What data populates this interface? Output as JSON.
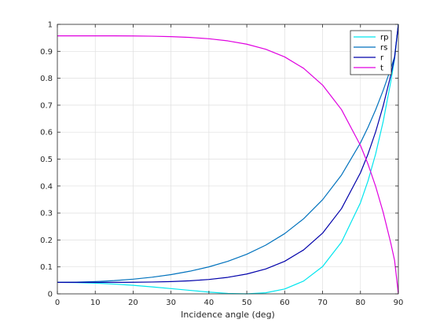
{
  "chart_data": {
    "type": "line",
    "title": "",
    "xlabel": "Incidence angle (deg)",
    "ylabel": "",
    "xlim": [
      0,
      90
    ],
    "ylim": [
      0,
      1
    ],
    "xticks": [
      0,
      10,
      20,
      30,
      40,
      50,
      60,
      70,
      80,
      90
    ],
    "yticks": [
      0,
      0.1,
      0.2,
      0.3,
      0.4,
      0.5,
      0.6,
      0.7,
      0.8,
      0.9,
      1
    ],
    "grid": true,
    "legend_position": "top-right",
    "x": [
      0,
      5,
      10,
      15,
      20,
      25,
      30,
      35,
      40,
      45,
      50,
      55,
      60,
      65,
      70,
      75,
      80,
      82,
      84,
      86,
      88,
      89,
      90
    ],
    "series": [
      {
        "name": "rp",
        "color": "#00e5ee",
        "values": [
          0.0426,
          0.0419,
          0.0398,
          0.0363,
          0.0316,
          0.0259,
          0.0195,
          0.0129,
          0.0066,
          0.0017,
          1e-05,
          0.004,
          0.018,
          0.0475,
          0.1013,
          0.192,
          0.3383,
          0.4196,
          0.519,
          0.6401,
          0.7873,
          0.8715,
          1.0
        ]
      },
      {
        "name": "rs",
        "color": "#0072bd",
        "values": [
          0.0426,
          0.0433,
          0.0455,
          0.0491,
          0.0545,
          0.0618,
          0.0715,
          0.0841,
          0.1002,
          0.1208,
          0.1471,
          0.1807,
          0.2236,
          0.2786,
          0.3493,
          0.441,
          0.5603,
          0.6183,
          0.6829,
          0.7552,
          0.8359,
          0.8798,
          1.0
        ]
      },
      {
        "name": "r",
        "color": "#0000aa",
        "values": [
          0.0426,
          0.0426,
          0.0427,
          0.0427,
          0.0431,
          0.0439,
          0.0455,
          0.0485,
          0.0534,
          0.0613,
          0.0736,
          0.0924,
          0.1208,
          0.1631,
          0.2253,
          0.3165,
          0.4493,
          0.519,
          0.601,
          0.6977,
          0.8116,
          0.8757,
          1.0
        ]
      },
      {
        "name": "t",
        "color": "#e000e0",
        "values": [
          0.9574,
          0.9574,
          0.9573,
          0.9573,
          0.9569,
          0.9561,
          0.9545,
          0.9515,
          0.9466,
          0.9387,
          0.9264,
          0.9076,
          0.8792,
          0.8369,
          0.7747,
          0.6835,
          0.5507,
          0.481,
          0.399,
          0.3023,
          0.1884,
          0.1243,
          0.0
        ]
      }
    ]
  }
}
